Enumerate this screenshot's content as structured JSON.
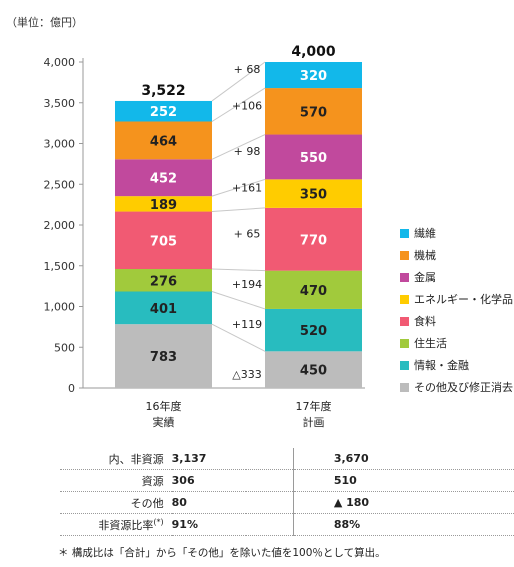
{
  "unit_label": "（単位：億円）",
  "chart_data": {
    "type": "bar",
    "stacked": true,
    "categories": [
      "16年度\n実績",
      "17年度\n計画"
    ],
    "totals": [
      "3,522",
      "4,000"
    ],
    "ylim": [
      0,
      4000
    ],
    "yticks": [
      "0",
      "500",
      "1,000",
      "1,500",
      "2,000",
      "2,500",
      "3,000",
      "3,500",
      "4,000"
    ],
    "series": [
      {
        "name": "その他及び修正消去",
        "color": "#bcbcbc",
        "label_color": "#222222",
        "values": [
          783,
          450
        ]
      },
      {
        "name": "情報・金融",
        "color": "#28bcbf",
        "label_color": "#222222",
        "values": [
          401,
          520
        ]
      },
      {
        "name": "住生活",
        "color": "#a1ca3c",
        "label_color": "#222222",
        "values": [
          276,
          470
        ]
      },
      {
        "name": "食料",
        "color": "#f15a73",
        "label_color": "#ffffff",
        "values": [
          705,
          770
        ]
      },
      {
        "name": "エネルギー・化学品",
        "color": "#ffcc00",
        "label_color": "#222222",
        "values": [
          189,
          350
        ]
      },
      {
        "name": "金属",
        "color": "#c1499d",
        "label_color": "#ffffff",
        "values": [
          452,
          550
        ]
      },
      {
        "name": "機械",
        "color": "#f5931d",
        "label_color": "#222222",
        "values": [
          464,
          570
        ]
      },
      {
        "name": "繊維",
        "color": "#12b8ea",
        "label_color": "#ffffff",
        "values": [
          252,
          320
        ]
      }
    ],
    "differences": [
      "△333",
      "+119",
      "+194",
      "+  65",
      "+161",
      "+  98",
      "+106",
      "+  68"
    ]
  },
  "legend_items": [
    {
      "label": "繊維",
      "color": "#12b8ea"
    },
    {
      "label": "機械",
      "color": "#f5931d"
    },
    {
      "label": "金属",
      "color": "#c1499d"
    },
    {
      "label": "エネルギー・化学品",
      "color": "#ffcc00"
    },
    {
      "label": "食料",
      "color": "#f15a73"
    },
    {
      "label": "住生活",
      "color": "#a1ca3c"
    },
    {
      "label": "情報・金融",
      "color": "#28bcbf"
    },
    {
      "label": "その他及び修正消去",
      "color": "#bcbcbc"
    }
  ],
  "summary_table": [
    {
      "label": "内、非資源",
      "v16": "3,137",
      "v17": "3,670"
    },
    {
      "label": "資源",
      "v16": "306",
      "v17": "510"
    },
    {
      "label": "その他",
      "v16": "80",
      "v17": "▲ 180"
    },
    {
      "label": "非資源比率",
      "label_sup": "(*)",
      "v16": "91%",
      "v17": "88%"
    }
  ],
  "footnote": "＊ 構成比は「合計」から「その他」を除いた値を100％として算出。"
}
